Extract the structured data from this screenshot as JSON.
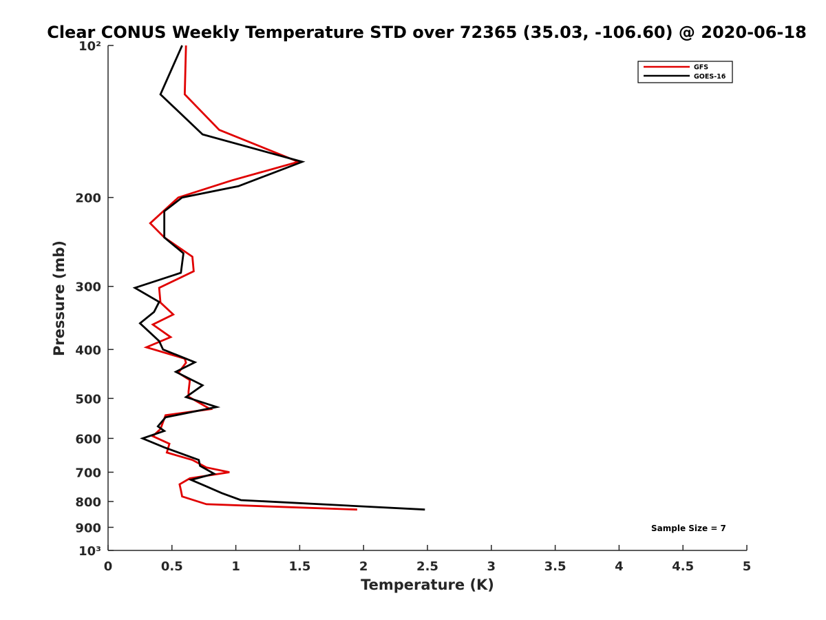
{
  "chart_data": {
    "type": "line",
    "title": "Clear CONUS Weekly Temperature STD over 72365 (35.03, -106.60) @ 2020-06-18",
    "xlabel": "Temperature (K)",
    "ylabel": "Pressure (mb)",
    "xlim": [
      0,
      5
    ],
    "ylim": [
      100,
      1000
    ],
    "y_scale": "log",
    "y_reversed": true,
    "x_ticks": [
      0,
      0.5,
      1,
      1.5,
      2,
      2.5,
      3,
      3.5,
      4,
      4.5,
      5
    ],
    "x_tick_labels": [
      "0",
      "0.5",
      "1",
      "1.5",
      "2",
      "2.5",
      "3",
      "3.5",
      "4",
      "4.5",
      "5"
    ],
    "y_ticks": [
      100,
      200,
      300,
      400,
      500,
      600,
      700,
      800,
      900,
      1000
    ],
    "y_tick_labels": [
      "10²",
      "200",
      "300",
      "400",
      "500",
      "600",
      "700",
      "800",
      "900",
      "10³"
    ],
    "grid": false,
    "legend_position": "top-right",
    "annotation": "Sample Size = 7",
    "series": [
      {
        "name": "GFS",
        "color": "#e00000",
        "points": [
          [
            0.61,
            100
          ],
          [
            0.6,
            125
          ],
          [
            0.87,
            147
          ],
          [
            1.49,
            170
          ],
          [
            0.97,
            185
          ],
          [
            0.55,
            200
          ],
          [
            0.33,
            225
          ],
          [
            0.44,
            240
          ],
          [
            0.66,
            262
          ],
          [
            0.67,
            280
          ],
          [
            0.4,
            302
          ],
          [
            0.41,
            323
          ],
          [
            0.51,
            341
          ],
          [
            0.35,
            357
          ],
          [
            0.49,
            378
          ],
          [
            0.3,
            396
          ],
          [
            0.6,
            417
          ],
          [
            0.61,
            425
          ],
          [
            0.55,
            445
          ],
          [
            0.64,
            460
          ],
          [
            0.63,
            485
          ],
          [
            0.63,
            496
          ],
          [
            0.8,
            525
          ],
          [
            0.45,
            540
          ],
          [
            0.41,
            575
          ],
          [
            0.35,
            594
          ],
          [
            0.48,
            615
          ],
          [
            0.46,
            640
          ],
          [
            0.66,
            662
          ],
          [
            0.77,
            685
          ],
          [
            0.95,
            700
          ],
          [
            0.64,
            720
          ],
          [
            0.56,
            740
          ],
          [
            0.57,
            760
          ],
          [
            0.58,
            782
          ],
          [
            0.77,
            810
          ],
          [
            1.95,
            830
          ]
        ]
      },
      {
        "name": "GOES-16",
        "color": "#000000",
        "points": [
          [
            0.58,
            100
          ],
          [
            0.41,
            125
          ],
          [
            0.74,
            150
          ],
          [
            1.52,
            170
          ],
          [
            1.02,
            190
          ],
          [
            0.58,
            200
          ],
          [
            0.44,
            213
          ],
          [
            0.44,
            240
          ],
          [
            0.59,
            258
          ],
          [
            0.57,
            282
          ],
          [
            0.21,
            302
          ],
          [
            0.4,
            322
          ],
          [
            0.36,
            337
          ],
          [
            0.25,
            355
          ],
          [
            0.4,
            385
          ],
          [
            0.43,
            400
          ],
          [
            0.68,
            424
          ],
          [
            0.53,
            443
          ],
          [
            0.74,
            471
          ],
          [
            0.61,
            497
          ],
          [
            0.85,
            520
          ],
          [
            0.45,
            545
          ],
          [
            0.39,
            568
          ],
          [
            0.44,
            580
          ],
          [
            0.27,
            600
          ],
          [
            0.44,
            625
          ],
          [
            0.71,
            662
          ],
          [
            0.72,
            680
          ],
          [
            0.83,
            705
          ],
          [
            0.65,
            725
          ],
          [
            0.76,
            745
          ],
          [
            0.89,
            770
          ],
          [
            1.04,
            795
          ],
          [
            2.48,
            830
          ]
        ]
      }
    ]
  }
}
